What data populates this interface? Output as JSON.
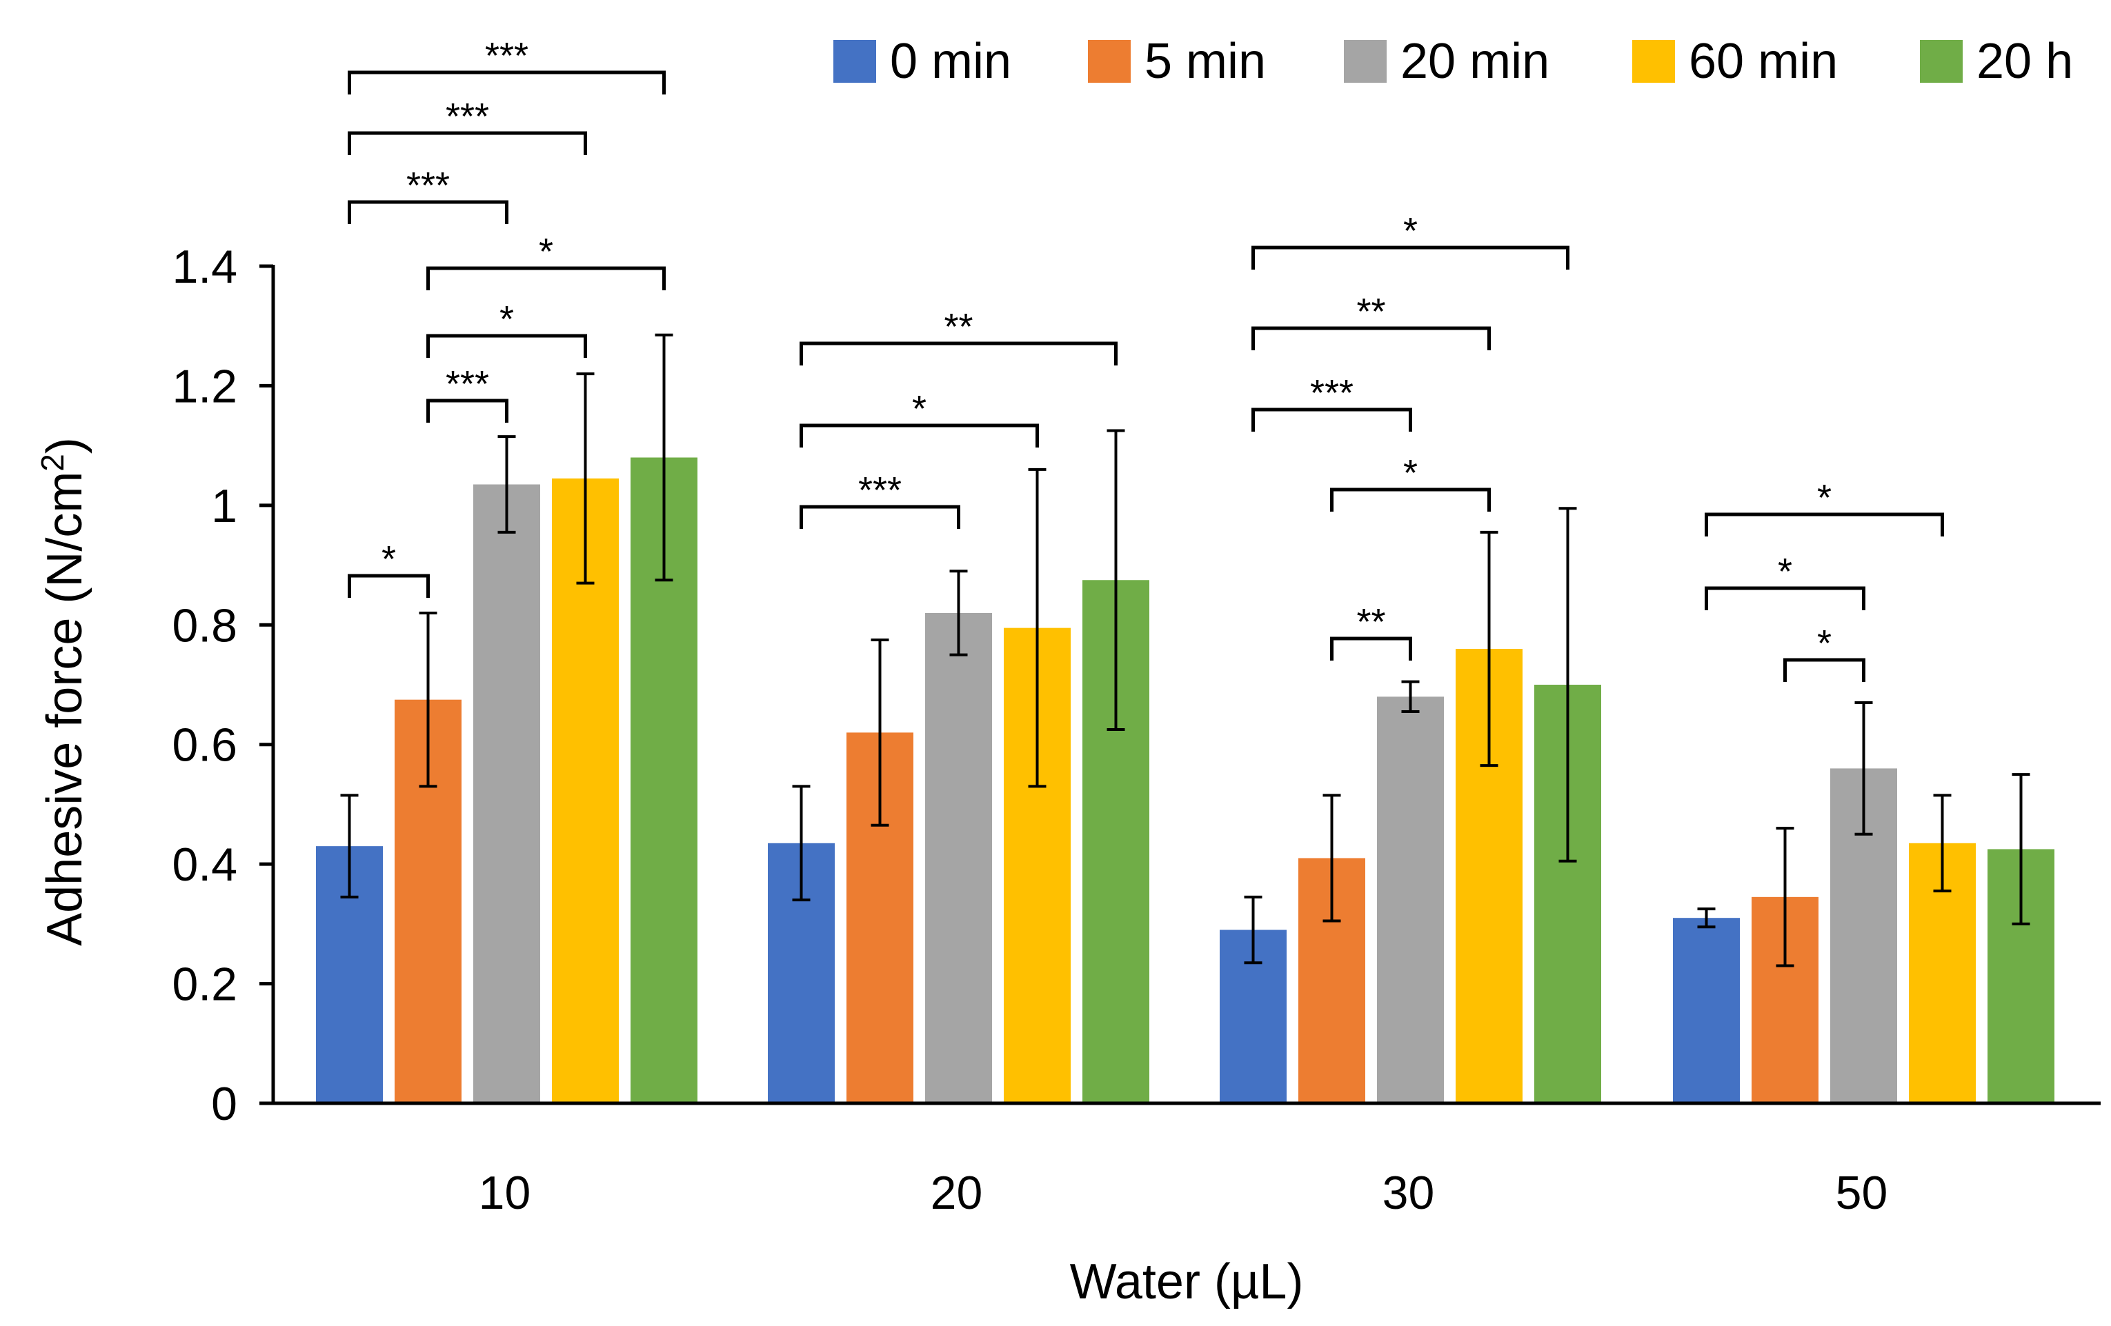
{
  "chart_data": {
    "type": "bar",
    "title": "",
    "xlabel": "Water (µL)",
    "ylabel": "Adhesive force (N/cm²)",
    "ylim": [
      0,
      1.4
    ],
    "yticks": [
      "0",
      "0.2",
      "0.4",
      "0.6",
      "0.8",
      "1",
      "1.2",
      "1.4"
    ],
    "categories": [
      "10",
      "20",
      "30",
      "50"
    ],
    "legend_position": "top-right",
    "grid": false,
    "series": [
      {
        "name": "0 min",
        "color": "#4472C4",
        "values": [
          0.43,
          0.435,
          0.29,
          0.31
        ],
        "errors": [
          0.085,
          0.095,
          0.055,
          0.015
        ]
      },
      {
        "name": "5 min",
        "color": "#ED7D31",
        "values": [
          0.675,
          0.62,
          0.41,
          0.345
        ],
        "errors": [
          0.145,
          0.155,
          0.105,
          0.115
        ]
      },
      {
        "name": "20 min",
        "color": "#A5A5A5",
        "values": [
          1.035,
          0.82,
          0.68,
          0.56
        ],
        "errors": [
          0.08,
          0.07,
          0.025,
          0.11
        ]
      },
      {
        "name": "60 min",
        "color": "#FFC000",
        "values": [
          1.045,
          0.795,
          0.76,
          0.435
        ],
        "errors": [
          0.175,
          0.265,
          0.195,
          0.08
        ]
      },
      {
        "name": "20 h",
        "color": "#70AD47",
        "values": [
          1.08,
          0.875,
          0.7,
          0.425
        ],
        "errors": [
          0.205,
          0.25,
          0.295,
          0.125
        ]
      }
    ],
    "significance": [
      {
        "category": 0,
        "from": 0,
        "to": 4,
        "label": "***"
      },
      {
        "category": 0,
        "from": 0,
        "to": 3,
        "label": "***"
      },
      {
        "category": 0,
        "from": 0,
        "to": 2,
        "label": "***"
      },
      {
        "category": 0,
        "from": 1,
        "to": 4,
        "label": "*"
      },
      {
        "category": 0,
        "from": 1,
        "to": 3,
        "label": "*"
      },
      {
        "category": 0,
        "from": 1,
        "to": 2,
        "label": "***"
      },
      {
        "category": 0,
        "from": 0,
        "to": 1,
        "label": "*"
      },
      {
        "category": 1,
        "from": 0,
        "to": 4,
        "label": "**"
      },
      {
        "category": 1,
        "from": 0,
        "to": 3,
        "label": "*"
      },
      {
        "category": 1,
        "from": 0,
        "to": 2,
        "label": "***"
      },
      {
        "category": 2,
        "from": 0,
        "to": 4,
        "label": "*"
      },
      {
        "category": 2,
        "from": 0,
        "to": 3,
        "label": "**"
      },
      {
        "category": 2,
        "from": 0,
        "to": 2,
        "label": "***"
      },
      {
        "category": 2,
        "from": 1,
        "to": 3,
        "label": "*"
      },
      {
        "category": 2,
        "from": 1,
        "to": 2,
        "label": "**"
      },
      {
        "category": 3,
        "from": 0,
        "to": 3,
        "label": "*"
      },
      {
        "category": 3,
        "from": 0,
        "to": 2,
        "label": "*"
      },
      {
        "category": 3,
        "from": 1,
        "to": 2,
        "label": "*"
      }
    ]
  }
}
